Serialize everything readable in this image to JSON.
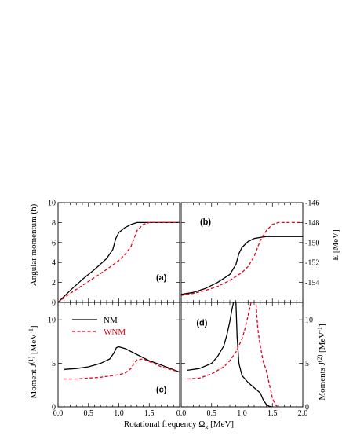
{
  "figure": {
    "xlabel": "Rotational frequency Ω",
    "xlabel_sub": "x",
    "xlabel_unit": " [MeV]",
    "ylabel_top_left": "Angular momentum (ħ)",
    "ylabel_top_right": "E [MeV]",
    "ylabel_bottom_left": "Moment J",
    "ylabel_bottom_left_sup": "(1)",
    "ylabel_bottom_left_unit": " [MeV",
    "ylabel_bottom_left_unit_sup": "-1",
    "ylabel_bottom_left_close": "]",
    "ylabel_bottom_right": "Moments J",
    "ylabel_bottom_right_sup": "(2)",
    "ylabel_bottom_right_unit": " [MeV",
    "ylabel_bottom_right_unit_sup": "-1",
    "ylabel_bottom_right_close": "]",
    "colors": {
      "NM": "#000000",
      "WNM": "#e8001c"
    },
    "legend": [
      {
        "label": "NM",
        "color": "#000000",
        "dash": "solid"
      },
      {
        "label": "WNM",
        "color": "#e8001c",
        "dash": "dashed"
      }
    ]
  },
  "chart_data": [
    {
      "panel": "(a)",
      "type": "line",
      "ylabel": "Angular momentum (ħ)",
      "xlim": [
        0.0,
        2.0
      ],
      "ylim": [
        0,
        10
      ],
      "x_ticks": [
        "0.0",
        "0.5",
        "1.0",
        "1.5"
      ],
      "y_ticks": [
        "0",
        "2",
        "4",
        "6",
        "8",
        "10"
      ],
      "series": [
        {
          "name": "NM",
          "x": [
            0.0,
            0.2,
            0.4,
            0.6,
            0.8,
            0.9,
            0.95,
            1.0,
            1.1,
            1.2,
            1.3,
            1.4,
            1.5,
            1.7,
            2.0
          ],
          "y": [
            0.0,
            1.2,
            2.3,
            3.3,
            4.4,
            5.3,
            6.4,
            7.0,
            7.5,
            7.8,
            8.0,
            8.0,
            8.0,
            8.0,
            8.0
          ]
        },
        {
          "name": "WNM",
          "x": [
            0.0,
            0.2,
            0.4,
            0.6,
            0.8,
            1.0,
            1.1,
            1.2,
            1.25,
            1.3,
            1.4,
            1.5,
            1.6,
            1.7,
            2.0
          ],
          "y": [
            0.0,
            0.9,
            1.7,
            2.5,
            3.3,
            4.2,
            4.8,
            5.6,
            6.4,
            7.2,
            7.8,
            8.0,
            8.0,
            8.0,
            8.0
          ]
        }
      ]
    },
    {
      "panel": "(b)",
      "type": "line",
      "ylabel": "E [MeV]",
      "xlim": [
        0.0,
        2.0
      ],
      "ylim": [
        -156,
        -146
      ],
      "y_ticks": [
        "-146",
        "-148",
        "-150",
        "-152",
        "-154"
      ],
      "series": [
        {
          "name": "NM",
          "x": [
            0.0,
            0.2,
            0.4,
            0.6,
            0.8,
            0.9,
            0.95,
            1.0,
            1.1,
            1.2,
            1.3,
            1.4,
            1.5,
            1.7,
            2.0
          ],
          "y": [
            -155.2,
            -155.0,
            -154.6,
            -154.0,
            -153.2,
            -152.2,
            -151.1,
            -150.5,
            -149.9,
            -149.6,
            -149.5,
            -149.4,
            -149.4,
            -149.4,
            -149.4
          ]
        },
        {
          "name": "WNM",
          "x": [
            0.0,
            0.2,
            0.4,
            0.6,
            0.8,
            1.0,
            1.1,
            1.2,
            1.25,
            1.3,
            1.4,
            1.5,
            1.6,
            1.7,
            2.0
          ],
          "y": [
            -155.3,
            -155.1,
            -154.8,
            -154.4,
            -153.8,
            -153.0,
            -152.4,
            -151.4,
            -150.6,
            -149.8,
            -148.8,
            -148.2,
            -148.0,
            -148.0,
            -148.0
          ]
        }
      ]
    },
    {
      "panel": "(c)",
      "type": "line",
      "ylabel": "Moment J(1) [MeV-1]",
      "xlim": [
        0.0,
        2.0
      ],
      "ylim": [
        0,
        12
      ],
      "x_ticks": [
        "0.0",
        "0.5",
        "1.0",
        "1.5"
      ],
      "y_ticks": [
        "0",
        "5",
        "10"
      ],
      "series": [
        {
          "name": "NM",
          "x": [
            0.1,
            0.3,
            0.5,
            0.7,
            0.85,
            0.92,
            0.96,
            1.0,
            1.1,
            1.3,
            1.5,
            1.7,
            2.0
          ],
          "y": [
            4.3,
            4.4,
            4.6,
            5.0,
            5.5,
            6.2,
            6.8,
            6.9,
            6.7,
            6.0,
            5.3,
            4.8,
            4.0
          ]
        },
        {
          "name": "WNM",
          "x": [
            0.1,
            0.3,
            0.5,
            0.7,
            0.9,
            1.0,
            1.1,
            1.2,
            1.25,
            1.3,
            1.4,
            1.5,
            1.7,
            2.0
          ],
          "y": [
            3.2,
            3.2,
            3.3,
            3.4,
            3.6,
            3.7,
            3.9,
            4.4,
            5.0,
            5.4,
            5.5,
            5.2,
            4.6,
            4.0
          ]
        }
      ]
    },
    {
      "panel": "(d)",
      "type": "line",
      "ylabel": "Moments J(2) [MeV-1]",
      "xlim": [
        0.0,
        2.0
      ],
      "ylim": [
        0,
        12
      ],
      "x_ticks": [
        "0.0",
        "0.5",
        "1.0",
        "1.5",
        "2.0"
      ],
      "y_ticks": [
        "0",
        "5",
        "10"
      ],
      "series": [
        {
          "name": "NM",
          "x": [
            0.1,
            0.3,
            0.5,
            0.6,
            0.7,
            0.75,
            0.8,
            0.83,
            0.86,
            0.88,
            0.9,
            0.92,
            0.95,
            1.0,
            1.1,
            1.2,
            1.3,
            1.35,
            1.4,
            1.45,
            1.5
          ],
          "y": [
            4.2,
            4.4,
            5.0,
            5.8,
            7.0,
            8.2,
            9.8,
            11.0,
            12.0,
            12.0,
            12.0,
            8.0,
            5.0,
            3.6,
            2.8,
            2.2,
            1.6,
            0.8,
            0.3,
            0.05,
            0.0
          ]
        },
        {
          "name": "WNM",
          "x": [
            0.1,
            0.3,
            0.5,
            0.7,
            0.8,
            0.9,
            1.0,
            1.05,
            1.1,
            1.15,
            1.18,
            1.2,
            1.23,
            1.26,
            1.3,
            1.35,
            1.4,
            1.45,
            1.5,
            1.55,
            1.6
          ],
          "y": [
            3.2,
            3.3,
            3.8,
            4.6,
            5.3,
            6.3,
            7.8,
            9.0,
            10.5,
            12.0,
            12.0,
            12.0,
            12.0,
            9.0,
            7.0,
            5.2,
            4.2,
            2.6,
            1.0,
            0.2,
            0.0
          ]
        }
      ]
    }
  ]
}
